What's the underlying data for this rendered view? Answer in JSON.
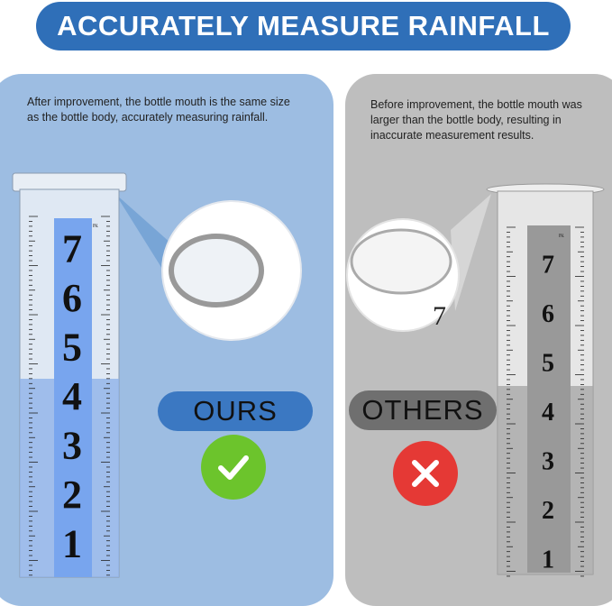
{
  "header": {
    "title": "ACCURATELY MEASURE RAINFALL",
    "bg_color": "#2f6fb8"
  },
  "ours": {
    "description": "After improvement, the bottle mouth is the same size as the bottle body, accurately measuring rainfall.",
    "label": "OURS",
    "panel_color": "#9dbde2",
    "label_color": "#3b78c2",
    "badge_icon": "checkmark-icon",
    "badge_color": "#6cc42c",
    "gauge_numbers": [
      "7",
      "6",
      "5",
      "4",
      "3",
      "2",
      "1"
    ],
    "gauge_unit": "IN.",
    "magnifier_number": ""
  },
  "others": {
    "description": "Before improvement, the bottle mouth was larger than the bottle body, resulting in inaccurate measurement results.",
    "label": "OTHERS",
    "panel_color": "#bebebe",
    "label_color": "#6f6f6f",
    "badge_icon": "x-icon",
    "badge_color": "#e53935",
    "gauge_numbers": [
      "7",
      "6",
      "5",
      "4",
      "3",
      "2",
      "1"
    ],
    "gauge_unit": "IN.",
    "magnifier_number": "7"
  }
}
